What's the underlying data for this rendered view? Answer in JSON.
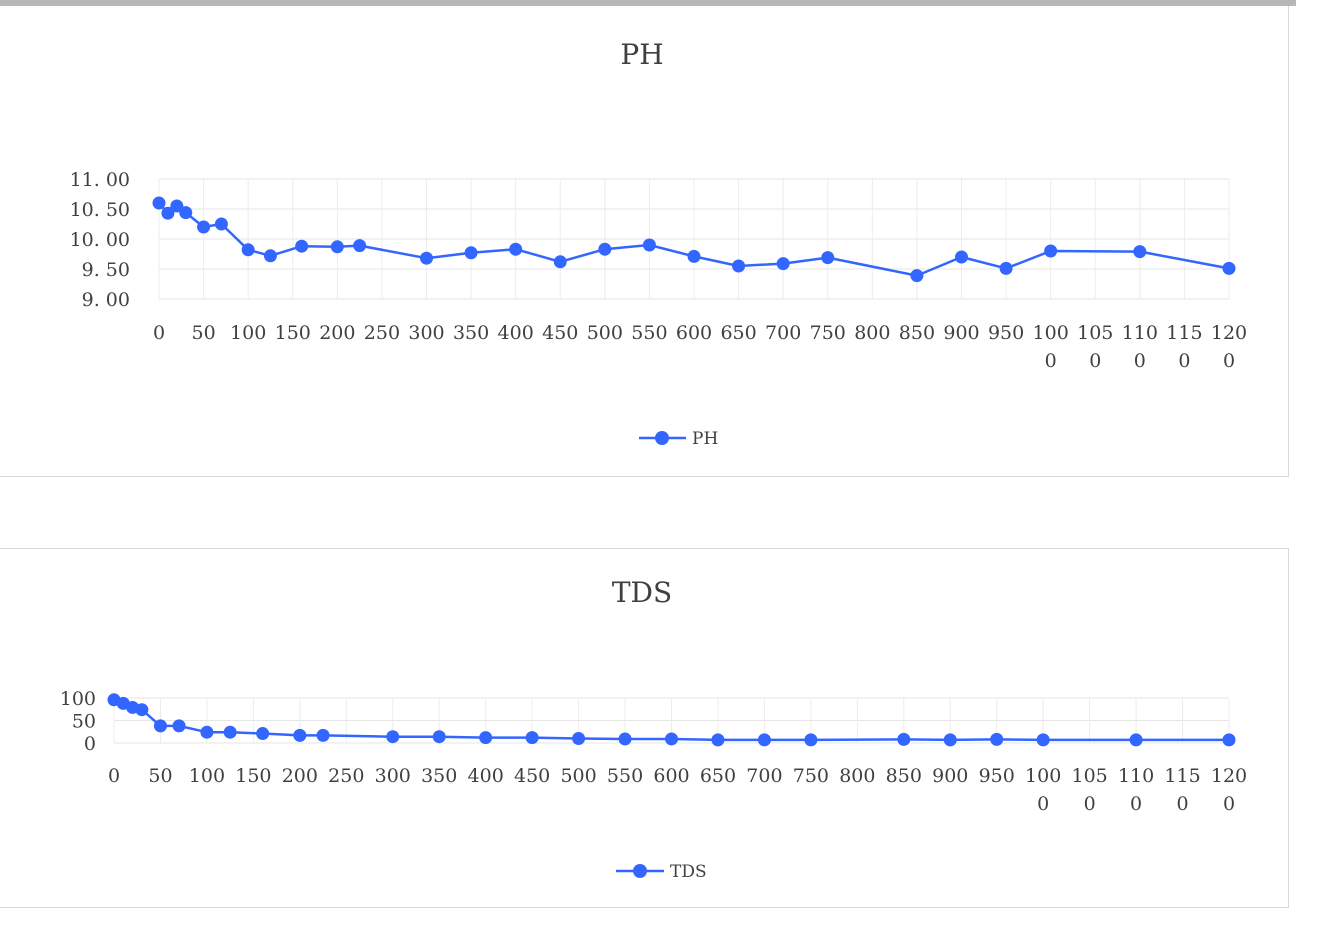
{
  "chart_data": [
    {
      "type": "line",
      "title": "PH",
      "xlabel": "",
      "ylabel": "",
      "xlim": [
        0,
        1200
      ],
      "ylim": [
        9.0,
        11.0
      ],
      "grid": true,
      "legend_position": "bottom",
      "y_tick_labels": [
        "11. 00",
        "10. 50",
        "10. 00",
        "9. 50",
        "9. 00"
      ],
      "y_tick_values": [
        11.0,
        10.5,
        10.0,
        9.5,
        9.0
      ],
      "x_tick_labels": [
        "0",
        "50",
        "100",
        "150",
        "200",
        "250",
        "300",
        "350",
        "400",
        "450",
        "500",
        "550",
        "600",
        "650",
        "700",
        "750",
        "800",
        "850",
        "900",
        "950",
        "100\n0",
        "105\n0",
        "110\n0",
        "115\n0",
        "120\n0"
      ],
      "series": [
        {
          "name": "PH",
          "color": "#3366ff",
          "x": [
            0,
            10,
            20,
            30,
            50,
            70,
            100,
            125,
            160,
            200,
            225,
            300,
            350,
            400,
            450,
            500,
            550,
            600,
            650,
            700,
            750,
            850,
            900,
            950,
            1000,
            1100,
            1200
          ],
          "y": [
            10.6,
            10.43,
            10.55,
            10.44,
            10.2,
            10.25,
            9.82,
            9.72,
            9.88,
            9.87,
            9.89,
            9.68,
            9.77,
            9.83,
            9.62,
            9.83,
            9.9,
            9.71,
            9.55,
            9.59,
            9.69,
            9.39,
            9.7,
            9.51,
            9.8,
            9.79,
            9.51
          ]
        }
      ]
    },
    {
      "type": "line",
      "title": "TDS",
      "xlabel": "",
      "ylabel": "",
      "xlim": [
        0,
        1200
      ],
      "ylim": [
        0,
        100
      ],
      "grid": true,
      "legend_position": "bottom",
      "y_tick_labels": [
        "100",
        "50",
        "0"
      ],
      "y_tick_values": [
        100,
        50,
        0
      ],
      "x_tick_labels": [
        "0",
        "50",
        "100",
        "150",
        "200",
        "250",
        "300",
        "350",
        "400",
        "450",
        "500",
        "550",
        "600",
        "650",
        "700",
        "750",
        "800",
        "850",
        "900",
        "950",
        "100\n0",
        "105\n0",
        "110\n0",
        "115\n0",
        "120\n0"
      ],
      "series": [
        {
          "name": "TDS",
          "color": "#3366ff",
          "x": [
            0,
            10,
            20,
            30,
            50,
            70,
            100,
            125,
            160,
            200,
            225,
            300,
            350,
            400,
            450,
            500,
            550,
            600,
            650,
            700,
            750,
            850,
            900,
            950,
            1000,
            1100,
            1200
          ],
          "y": [
            96,
            88,
            79,
            74,
            38,
            38,
            24,
            24,
            21,
            17,
            17,
            14,
            14,
            12,
            12,
            10,
            9,
            9,
            7,
            7,
            7,
            8,
            7,
            8,
            7,
            7,
            7
          ]
        }
      ]
    }
  ]
}
